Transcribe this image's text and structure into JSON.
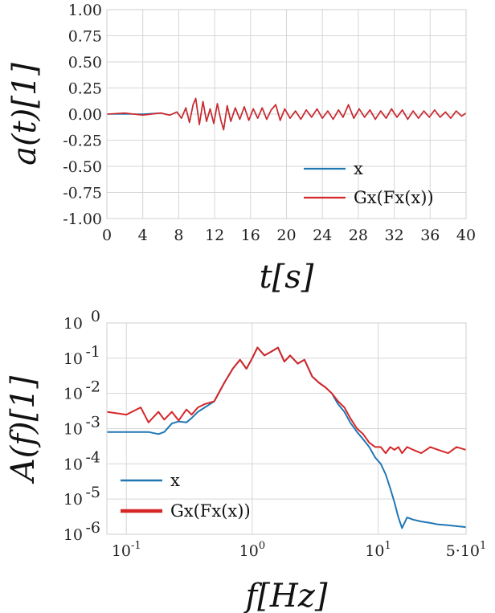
{
  "chart_data": [
    {
      "type": "line",
      "xlabel": "t[s]",
      "ylabel": "a(t)[1]",
      "xlim": [
        0,
        40
      ],
      "ylim": [
        -1.0,
        1.0
      ],
      "grid": true,
      "x_ticks": [
        0,
        4,
        8,
        12,
        16,
        20,
        24,
        28,
        32,
        36,
        40
      ],
      "x_tick_labels": [
        "0",
        "4",
        "8",
        "12",
        "16",
        "20",
        "24",
        "28",
        "32",
        "36",
        "40"
      ],
      "y_ticks": [
        1.0,
        0.75,
        0.5,
        0.25,
        0.0,
        -0.25,
        -0.5,
        -0.75,
        -1.0
      ],
      "y_tick_labels": [
        "1.00",
        "0.75",
        "0.50",
        "0.25",
        "0.00",
        "-0.25",
        "-0.50",
        "-0.75",
        "-1.00"
      ],
      "legend_position": "lower-right",
      "series": [
        {
          "name": "x",
          "color": "#1f77b4",
          "x": [
            0,
            2,
            4,
            6,
            7,
            7.8,
            8.3,
            8.8,
            9.2,
            9.6,
            9.9,
            10.3,
            10.7,
            11.1,
            11.5,
            11.9,
            12.3,
            12.7,
            13.0,
            13.4,
            13.8,
            14.3,
            14.8,
            15.3,
            15.8,
            16.3,
            16.8,
            17.3,
            17.8,
            18.3,
            18.8,
            19.3,
            19.8,
            20.4,
            21.0,
            21.6,
            22.2,
            22.8,
            23.4,
            24.0,
            24.6,
            25.2,
            25.8,
            26.3,
            26.9,
            27.5,
            28.1,
            28.7,
            29.3,
            29.9,
            30.5,
            31.1,
            31.7,
            32.3,
            32.9,
            33.5,
            34.1,
            34.7,
            35.3,
            35.9,
            36.5,
            37.1,
            37.7,
            38.3,
            38.9,
            39.5,
            40
          ],
          "y": [
            0.0,
            0.0,
            0.0,
            0.01,
            -0.01,
            0.02,
            -0.04,
            0.06,
            -0.08,
            0.09,
            0.15,
            -0.1,
            0.12,
            -0.07,
            0.05,
            -0.09,
            0.1,
            -0.06,
            -0.15,
            0.08,
            -0.07,
            0.06,
            -0.05,
            0.07,
            -0.06,
            0.05,
            -0.04,
            0.06,
            -0.05,
            0.04,
            0.09,
            -0.06,
            0.05,
            -0.04,
            0.03,
            -0.05,
            0.04,
            -0.03,
            0.05,
            -0.04,
            0.03,
            -0.05,
            0.04,
            -0.03,
            0.09,
            -0.04,
            0.05,
            -0.03,
            0.04,
            -0.05,
            0.03,
            -0.04,
            0.05,
            -0.03,
            0.04,
            -0.05,
            0.03,
            -0.04,
            0.03,
            -0.03,
            0.04,
            -0.03,
            0.02,
            -0.04,
            0.03,
            -0.02,
            0.01
          ]
        },
        {
          "name": "Gx(Fx(x))",
          "color": "#d62728",
          "x": [
            0,
            2,
            4,
            6,
            7,
            7.8,
            8.3,
            8.8,
            9.2,
            9.6,
            9.9,
            10.3,
            10.7,
            11.1,
            11.5,
            11.9,
            12.3,
            12.7,
            13.0,
            13.4,
            13.8,
            14.3,
            14.8,
            15.3,
            15.8,
            16.3,
            16.8,
            17.3,
            17.8,
            18.3,
            18.8,
            19.3,
            19.8,
            20.4,
            21.0,
            21.6,
            22.2,
            22.8,
            23.4,
            24.0,
            24.6,
            25.2,
            25.8,
            26.3,
            26.9,
            27.5,
            28.1,
            28.7,
            29.3,
            29.9,
            30.5,
            31.1,
            31.7,
            32.3,
            32.9,
            33.5,
            34.1,
            34.7,
            35.3,
            35.9,
            36.5,
            37.1,
            37.7,
            38.3,
            38.9,
            39.5,
            40
          ],
          "y": [
            0.0,
            0.01,
            -0.01,
            0.01,
            -0.01,
            0.02,
            -0.04,
            0.06,
            -0.08,
            0.09,
            0.15,
            -0.1,
            0.12,
            -0.07,
            0.05,
            -0.09,
            0.1,
            -0.06,
            -0.15,
            0.08,
            -0.07,
            0.06,
            -0.05,
            0.07,
            -0.06,
            0.05,
            -0.04,
            0.06,
            -0.05,
            0.04,
            0.09,
            -0.06,
            0.05,
            -0.04,
            0.03,
            -0.05,
            0.04,
            -0.03,
            0.05,
            -0.04,
            0.03,
            -0.05,
            0.04,
            -0.03,
            0.09,
            -0.04,
            0.05,
            -0.03,
            0.04,
            -0.05,
            0.03,
            -0.04,
            0.05,
            -0.03,
            0.04,
            -0.05,
            0.03,
            -0.04,
            0.03,
            -0.03,
            0.04,
            -0.03,
            0.02,
            -0.04,
            0.03,
            -0.02,
            0.01
          ]
        }
      ]
    },
    {
      "type": "line",
      "xlabel": "f[Hz]",
      "ylabel": "A(f)[1]",
      "xscale": "log",
      "yscale": "log",
      "xlim": [
        0.07,
        50
      ],
      "ylim": [
        1e-06,
        1
      ],
      "grid": true,
      "x_ticks": [
        0.1,
        1,
        10,
        50
      ],
      "x_tick_labels": [
        "10",
        "10",
        "10",
        "5·10"
      ],
      "x_tick_exponents": [
        "-1",
        "0",
        "1",
        "1"
      ],
      "y_ticks": [
        1,
        0.1,
        0.01,
        0.001,
        0.0001,
        1e-05,
        1e-06
      ],
      "y_tick_labels": [
        "10",
        "10",
        "10",
        "10",
        "10",
        "10",
        "10"
      ],
      "y_tick_exponents": [
        "0",
        "-1",
        "-2",
        "-3",
        "-4",
        "-5",
        "-6"
      ],
      "legend_position": "lower-left",
      "series": [
        {
          "name": "x",
          "color": "#1f77b4",
          "x": [
            0.07,
            0.1,
            0.13,
            0.15,
            0.18,
            0.2,
            0.23,
            0.26,
            0.3,
            0.33,
            0.37,
            0.42,
            0.5,
            0.6,
            0.7,
            0.8,
            0.9,
            1.0,
            1.1,
            1.25,
            1.4,
            1.6,
            1.8,
            2.0,
            2.3,
            2.6,
            3.0,
            3.4,
            3.8,
            4.3,
            4.8,
            5.4,
            6.0,
            6.8,
            7.6,
            8.5,
            9.5,
            10.5,
            11.5,
            12.5,
            13.5,
            14.5,
            15.5,
            17,
            19,
            22,
            26,
            30,
            36,
            42,
            50
          ],
          "y": [
            0.0008,
            0.0008,
            0.0008,
            0.0008,
            0.0007,
            0.0008,
            0.0014,
            0.0016,
            0.0015,
            0.002,
            0.003,
            0.004,
            0.006,
            0.02,
            0.05,
            0.09,
            0.05,
            0.1,
            0.2,
            0.12,
            0.15,
            0.2,
            0.08,
            0.12,
            0.07,
            0.09,
            0.03,
            0.02,
            0.015,
            0.01,
            0.005,
            0.003,
            0.0015,
            0.0008,
            0.0005,
            0.0003,
            0.00015,
            0.0001,
            5e-05,
            2e-05,
            8e-06,
            3e-06,
            1.5e-06,
            3e-06,
            2.6e-06,
            2.3e-06,
            2.1e-06,
            1.9e-06,
            1.8e-06,
            1.7e-06,
            1.6e-06
          ]
        },
        {
          "name": "Gx(Fx(x))",
          "color": "#d62728",
          "x": [
            0.07,
            0.1,
            0.13,
            0.15,
            0.18,
            0.2,
            0.23,
            0.26,
            0.3,
            0.33,
            0.37,
            0.42,
            0.5,
            0.6,
            0.7,
            0.8,
            0.9,
            1.0,
            1.1,
            1.25,
            1.4,
            1.6,
            1.8,
            2.0,
            2.3,
            2.6,
            3.0,
            3.4,
            3.8,
            4.3,
            4.8,
            5.4,
            6.0,
            6.8,
            7.6,
            8.5,
            9.5,
            10.5,
            11.5,
            12.5,
            13.5,
            14.5,
            15.5,
            17,
            19,
            22,
            26,
            30,
            36,
            42,
            50
          ],
          "y": [
            0.003,
            0.0025,
            0.004,
            0.0015,
            0.003,
            0.0018,
            0.003,
            0.0017,
            0.0035,
            0.0025,
            0.004,
            0.005,
            0.006,
            0.02,
            0.05,
            0.09,
            0.05,
            0.1,
            0.2,
            0.12,
            0.15,
            0.2,
            0.08,
            0.12,
            0.07,
            0.09,
            0.03,
            0.02,
            0.015,
            0.01,
            0.006,
            0.004,
            0.002,
            0.001,
            0.0007,
            0.0004,
            0.0003,
            0.0003,
            0.0002,
            0.0003,
            0.00025,
            0.0003,
            0.0002,
            0.0003,
            0.00025,
            0.0002,
            0.0003,
            0.00025,
            0.0002,
            0.0003,
            0.00025
          ]
        }
      ]
    }
  ]
}
